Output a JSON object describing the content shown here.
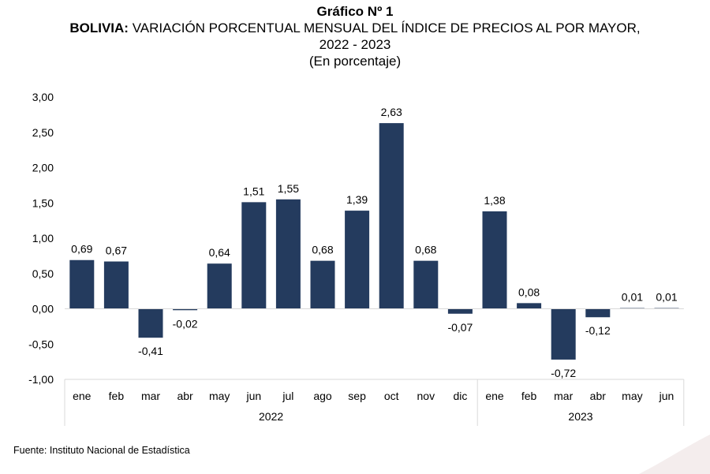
{
  "header": {
    "title": "Gráfico Nº 1",
    "subtitle_bold": "BOLIVIA:",
    "subtitle_rest": " VARIACIÓN PORCENTUAL MENSUAL DEL ÍNDICE DE PRECIOS AL POR MAYOR,",
    "subtitle_line2": "2022 - 2023",
    "unit_note": "(En porcentaje)"
  },
  "source": "Fuente: Instituto Nacional de Estadística",
  "chart_data": {
    "type": "bar",
    "categories": [
      "ene",
      "feb",
      "mar",
      "abr",
      "may",
      "jun",
      "jul",
      "ago",
      "sep",
      "oct",
      "nov",
      "dic",
      "ene",
      "feb",
      "mar",
      "abr",
      "may",
      "jun"
    ],
    "groups": [
      {
        "label": "2022",
        "count": 12
      },
      {
        "label": "2023",
        "count": 6
      }
    ],
    "values": [
      0.69,
      0.67,
      -0.41,
      -0.02,
      0.64,
      1.51,
      1.55,
      0.68,
      1.39,
      2.63,
      0.68,
      -0.07,
      1.38,
      0.08,
      -0.72,
      -0.12,
      0.01,
      0.01
    ],
    "value_labels": [
      "0,69",
      "0,67",
      "-0,41",
      "-0,02",
      "0,64",
      "1,51",
      "1,55",
      "0,68",
      "1,39",
      "2,63",
      "0,68",
      "-0,07",
      "1,38",
      "0,08",
      "-0,72",
      "-0,12",
      "0,01",
      "0,01"
    ],
    "ylim": [
      -1.0,
      3.0
    ],
    "yticks": [
      3.0,
      2.5,
      2.0,
      1.5,
      1.0,
      0.5,
      0.0,
      -0.5,
      -1.0
    ],
    "ytick_labels": [
      "3,00",
      "2,50",
      "2,00",
      "1,50",
      "1,00",
      "0,50",
      "0,00",
      "-0,50",
      "-1,00"
    ],
    "grid": false,
    "bar_color": "#243b5e",
    "axis_color": "#d9d9d9"
  }
}
